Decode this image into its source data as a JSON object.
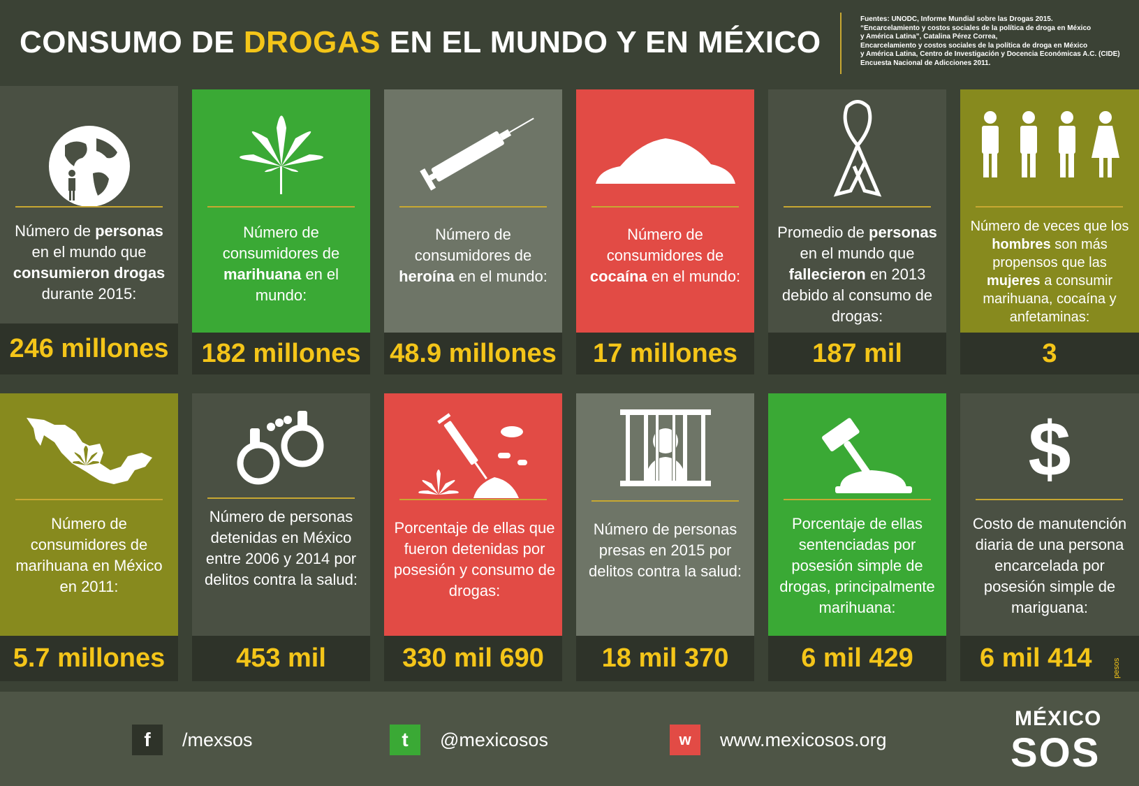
{
  "header": {
    "title_part1": "CONSUMO DE ",
    "title_highlight": "DROGAS",
    "title_part2": " EN EL MUNDO Y EN MÉXICO",
    "sources": [
      "Fuentes: UNODC, Informe Mundial sobre las Drogas 2015.",
      "“Encarcelamiento y costos sociales de la política de droga en México",
      "y América Latina”, Catalina Pérez Correa,",
      "Encarcelamiento y costos sociales de la política de droga en México",
      "y América Latina, Centro de Investigación y Docencia Económicas A.C. (CIDE)",
      "Encuesta Nacional de Adicciones 2011."
    ]
  },
  "colors": {
    "accent": "#f4c519",
    "dark": "#4a5043",
    "green": "#3aa935",
    "gray": "#6e7567",
    "red": "#e24b45",
    "olive": "#878a1e",
    "value_bg": "#2e3329"
  },
  "row1": [
    {
      "icon": "globe-person-icon",
      "label_html_parts": [
        "Número de ",
        "personas",
        " en el mundo que ",
        "consumieron drogas",
        " durante 2015:"
      ],
      "value": "246 millones"
    },
    {
      "icon": "cannabis-leaf-icon",
      "label_html_parts": [
        "Número de consumidores de ",
        "marihuana",
        " en el mundo:"
      ],
      "value": "182 millones"
    },
    {
      "icon": "syringe-icon",
      "label_html_parts": [
        "Número de consumidores de ",
        "heroína",
        " en el mundo:"
      ],
      "value": "48.9 millones"
    },
    {
      "icon": "powder-pile-icon",
      "label_html_parts": [
        "Número de consumidores de ",
        "cocaína",
        " en el mundo:"
      ],
      "value": "17 millones"
    },
    {
      "icon": "awareness-ribbon-icon",
      "label_html_parts": [
        "Promedio de ",
        "personas",
        " en el mundo que ",
        "fallecieron",
        " en 2013 debido al consumo de drogas:"
      ],
      "value": "187 mil"
    },
    {
      "icon": "men-women-icon",
      "label_html_parts": [
        "Número de veces que los ",
        "hombres",
        " son más propensos que las ",
        "mujeres",
        " a consumir marihuana, cocaína y anfetaminas:"
      ],
      "value": "3"
    }
  ],
  "row2": [
    {
      "icon": "mexico-map-icon",
      "label": "Número de consumidores de marihuana en México en 2011:",
      "value": "5.7 millones"
    },
    {
      "icon": "handcuffs-icon",
      "label": "Número de personas detenidas en México entre 2006 y 2014 por delitos contra la salud:",
      "value": "453 mil"
    },
    {
      "icon": "drugs-icon",
      "label": "Porcentaje de ellas que fueron detenidas por posesión y consumo de drogas:",
      "value": "330 mil 690"
    },
    {
      "icon": "prisoner-icon",
      "label": "Número de personas presas en 2015 por delitos contra la salud:",
      "value": "18 mil 370"
    },
    {
      "icon": "gavel-icon",
      "label": "Porcentaje de ellas sentenciadas por posesión simple de drogas, principalmente marihuana:",
      "value": "6 mil 429"
    },
    {
      "icon": "dollar-icon",
      "label": "Costo de manutención diaria de una persona encarcelada por posesión simple de mariguana:",
      "value": "6 mil 414",
      "unit": "pesos"
    }
  ],
  "footer": {
    "facebook": {
      "icon": "facebook-icon",
      "glyph": "f",
      "text": "/mexsos"
    },
    "twitter": {
      "icon": "twitter-icon",
      "glyph": "t",
      "text": "@mexicosos"
    },
    "web": {
      "icon": "web-icon",
      "glyph": "w",
      "text": "www.mexicosos.org"
    },
    "logo_top": "MÉXICO",
    "logo_bottom": "SOS"
  }
}
